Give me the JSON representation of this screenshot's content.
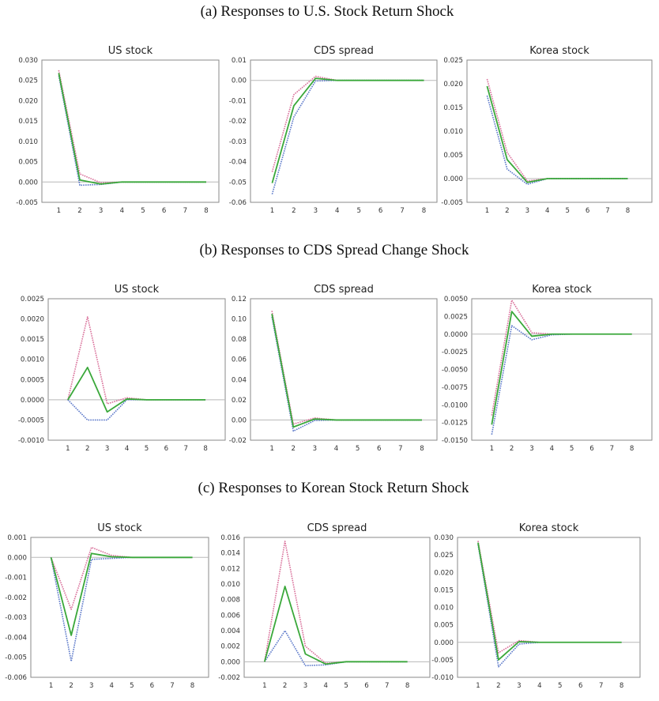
{
  "figure": {
    "sections": [
      {
        "title": "(a) Responses to U.S. Stock Return Shock"
      },
      {
        "title": "(b) Responses to CDS Spread Change Shock"
      },
      {
        "title": "(c) Responses to Korean Stock Return Shock"
      }
    ],
    "colors": {
      "upper": "#d9709a",
      "mid": "#3aa83a",
      "lower": "#5b78c9",
      "zero": "#b8b8b8",
      "frame": "#8a8a8a"
    }
  },
  "chart_data": [
    {
      "type": "line",
      "section": "a",
      "title": "US stock",
      "x": [
        1,
        2,
        3,
        4,
        5,
        6,
        7,
        8
      ],
      "xlim": [
        0.2,
        8.6
      ],
      "ylim": [
        -0.005,
        0.03
      ],
      "yticks": [
        "0.030",
        "0.025",
        "0.020",
        "0.015",
        "0.010",
        "0.005",
        "0.000",
        "-0.005"
      ],
      "series": [
        {
          "name": "upper",
          "values": [
            0.0275,
            0.002,
            -0.0002,
            0,
            0,
            0,
            0,
            0
          ]
        },
        {
          "name": "response",
          "values": [
            0.0268,
            0.0005,
            -0.0005,
            0,
            0,
            0,
            0,
            0
          ]
        },
        {
          "name": "lower",
          "values": [
            0.0262,
            -0.0008,
            -0.0006,
            0,
            0,
            0,
            0,
            0
          ]
        }
      ]
    },
    {
      "type": "line",
      "section": "a",
      "title": "CDS spread",
      "x": [
        1,
        2,
        3,
        4,
        5,
        6,
        7,
        8
      ],
      "xlim": [
        0.0,
        8.6
      ],
      "ylim": [
        -0.06,
        0.01
      ],
      "yticks": [
        "0.01",
        "0.00",
        "-0.01",
        "-0.02",
        "-0.03",
        "-0.04",
        "-0.05",
        "-0.06"
      ],
      "series": [
        {
          "name": "upper",
          "values": [
            -0.045,
            -0.007,
            0.002,
            0,
            0,
            0,
            0,
            0
          ]
        },
        {
          "name": "response",
          "values": [
            -0.0505,
            -0.0125,
            0.001,
            0,
            0,
            0,
            0,
            0
          ]
        },
        {
          "name": "lower",
          "values": [
            -0.056,
            -0.018,
            -0.0003,
            0,
            0,
            0,
            0,
            0
          ]
        }
      ]
    },
    {
      "type": "line",
      "section": "a",
      "title": "Korea stock",
      "x": [
        1,
        2,
        3,
        4,
        5,
        6,
        7,
        8
      ],
      "xlim": [
        0.0,
        9.2
      ],
      "ylim": [
        -0.005,
        0.025
      ],
      "yticks": [
        "0.025",
        "0.020",
        "0.015",
        "0.010",
        "0.005",
        "0.000",
        "-0.005"
      ],
      "series": [
        {
          "name": "upper",
          "values": [
            0.021,
            0.0055,
            -0.0005,
            0,
            0,
            0,
            0,
            0
          ]
        },
        {
          "name": "response",
          "values": [
            0.0195,
            0.004,
            -0.0008,
            0,
            0,
            0,
            0,
            0
          ]
        },
        {
          "name": "lower",
          "values": [
            0.0175,
            0.002,
            -0.0012,
            0,
            0,
            0,
            0,
            0
          ]
        }
      ]
    },
    {
      "type": "line",
      "section": "b",
      "title": "US stock",
      "x": [
        1,
        2,
        3,
        4,
        5,
        6,
        7,
        8
      ],
      "xlim": [
        0.0,
        9.0
      ],
      "ylim": [
        -0.001,
        0.0025
      ],
      "yticks": [
        "0.0025",
        "0.0020",
        "0.0015",
        "0.0010",
        "0.0005",
        "0.0000",
        "-0.0005",
        "-0.0010"
      ],
      "series": [
        {
          "name": "upper",
          "values": [
            0,
            0.00205,
            -0.0001,
            5e-05,
            0,
            0,
            0,
            0
          ]
        },
        {
          "name": "response",
          "values": [
            0,
            0.0008,
            -0.0003,
            2e-05,
            0,
            0,
            0,
            0
          ]
        },
        {
          "name": "lower",
          "values": [
            0,
            -0.0005,
            -0.0005,
            0,
            0,
            0,
            0,
            0
          ]
        }
      ]
    },
    {
      "type": "line",
      "section": "b",
      "title": "CDS spread",
      "x": [
        1,
        2,
        3,
        4,
        5,
        6,
        7,
        8
      ],
      "xlim": [
        0.0,
        8.7
      ],
      "ylim": [
        -0.02,
        0.12
      ],
      "yticks": [
        "0.12",
        "0.10",
        "0.08",
        "0.06",
        "0.04",
        "0.02",
        "0.00",
        "-0.02"
      ],
      "series": [
        {
          "name": "upper",
          "values": [
            0.108,
            -0.004,
            0.002,
            0,
            0,
            0,
            0,
            0
          ]
        },
        {
          "name": "response",
          "values": [
            0.105,
            -0.007,
            0.001,
            0,
            0,
            0,
            0,
            0
          ]
        },
        {
          "name": "lower",
          "values": [
            0.102,
            -0.011,
            -0.0005,
            0,
            0,
            0,
            0,
            0
          ]
        }
      ]
    },
    {
      "type": "line",
      "section": "b",
      "title": "Korea stock",
      "x": [
        1,
        2,
        3,
        4,
        5,
        6,
        7,
        8
      ],
      "xlim": [
        0.0,
        9.0
      ],
      "ylim": [
        -0.015,
        0.005
      ],
      "yticks": [
        "0.0050",
        "0.0025",
        "0.0000",
        "-0.0025",
        "-0.0050",
        "-0.0075",
        "-0.0100",
        "-0.0125",
        "-0.0150"
      ],
      "series": [
        {
          "name": "upper",
          "values": [
            -0.0115,
            0.0048,
            0.0002,
            0,
            0,
            0,
            0,
            0
          ]
        },
        {
          "name": "response",
          "values": [
            -0.0128,
            0.0032,
            -0.0003,
            0,
            0,
            0,
            0,
            0
          ]
        },
        {
          "name": "lower",
          "values": [
            -0.0142,
            0.0012,
            -0.0008,
            -0.0001,
            0,
            0,
            0,
            0
          ]
        }
      ]
    },
    {
      "type": "line",
      "section": "c",
      "title": "US stock",
      "x": [
        1,
        2,
        3,
        4,
        5,
        6,
        7,
        8
      ],
      "xlim": [
        0.0,
        8.8
      ],
      "ylim": [
        -0.006,
        0.001
      ],
      "yticks": [
        "0.001",
        "0.000",
        "-0.001",
        "-0.002",
        "-0.003",
        "-0.004",
        "-0.005",
        "-0.006"
      ],
      "series": [
        {
          "name": "upper",
          "values": [
            0,
            -0.0026,
            0.0005,
            0.0001,
            0,
            0,
            0,
            0
          ]
        },
        {
          "name": "response",
          "values": [
            0,
            -0.0039,
            0.0002,
            3e-05,
            0,
            0,
            0,
            0
          ]
        },
        {
          "name": "lower",
          "values": [
            0,
            -0.0052,
            -0.0001,
            -5e-05,
            0,
            0,
            0,
            0
          ]
        }
      ]
    },
    {
      "type": "line",
      "section": "c",
      "title": "CDS spread",
      "x": [
        1,
        2,
        3,
        4,
        5,
        6,
        7,
        8
      ],
      "xlim": [
        0.0,
        9.1
      ],
      "ylim": [
        -0.002,
        0.016
      ],
      "yticks": [
        "0.016",
        "0.014",
        "0.012",
        "0.010",
        "0.008",
        "0.006",
        "0.004",
        "0.002",
        "0.000",
        "-0.002"
      ],
      "series": [
        {
          "name": "upper",
          "values": [
            0,
            0.0155,
            0.002,
            -0.0002,
            0,
            0,
            0,
            0
          ]
        },
        {
          "name": "response",
          "values": [
            0,
            0.0097,
            0.001,
            -0.0003,
            0,
            0,
            0,
            0
          ]
        },
        {
          "name": "lower",
          "values": [
            0,
            0.004,
            -0.0005,
            -0.0004,
            0,
            0,
            0,
            0
          ]
        }
      ]
    },
    {
      "type": "line",
      "section": "c",
      "title": "Korea stock",
      "x": [
        1,
        2,
        3,
        4,
        5,
        6,
        7,
        8
      ],
      "xlim": [
        0.0,
        8.9
      ],
      "ylim": [
        -0.01,
        0.03
      ],
      "yticks": [
        "0.030",
        "0.025",
        "0.020",
        "0.015",
        "0.010",
        "0.005",
        "0.000",
        "-0.005",
        "-0.010"
      ],
      "series": [
        {
          "name": "upper",
          "values": [
            0.029,
            -0.003,
            0.0005,
            0,
            0,
            0,
            0,
            0
          ]
        },
        {
          "name": "response",
          "values": [
            0.0285,
            -0.005,
            0.0002,
            0,
            0,
            0,
            0,
            0
          ]
        },
        {
          "name": "lower",
          "values": [
            0.028,
            -0.007,
            -0.0005,
            0,
            0,
            0,
            0,
            0
          ]
        }
      ]
    }
  ]
}
